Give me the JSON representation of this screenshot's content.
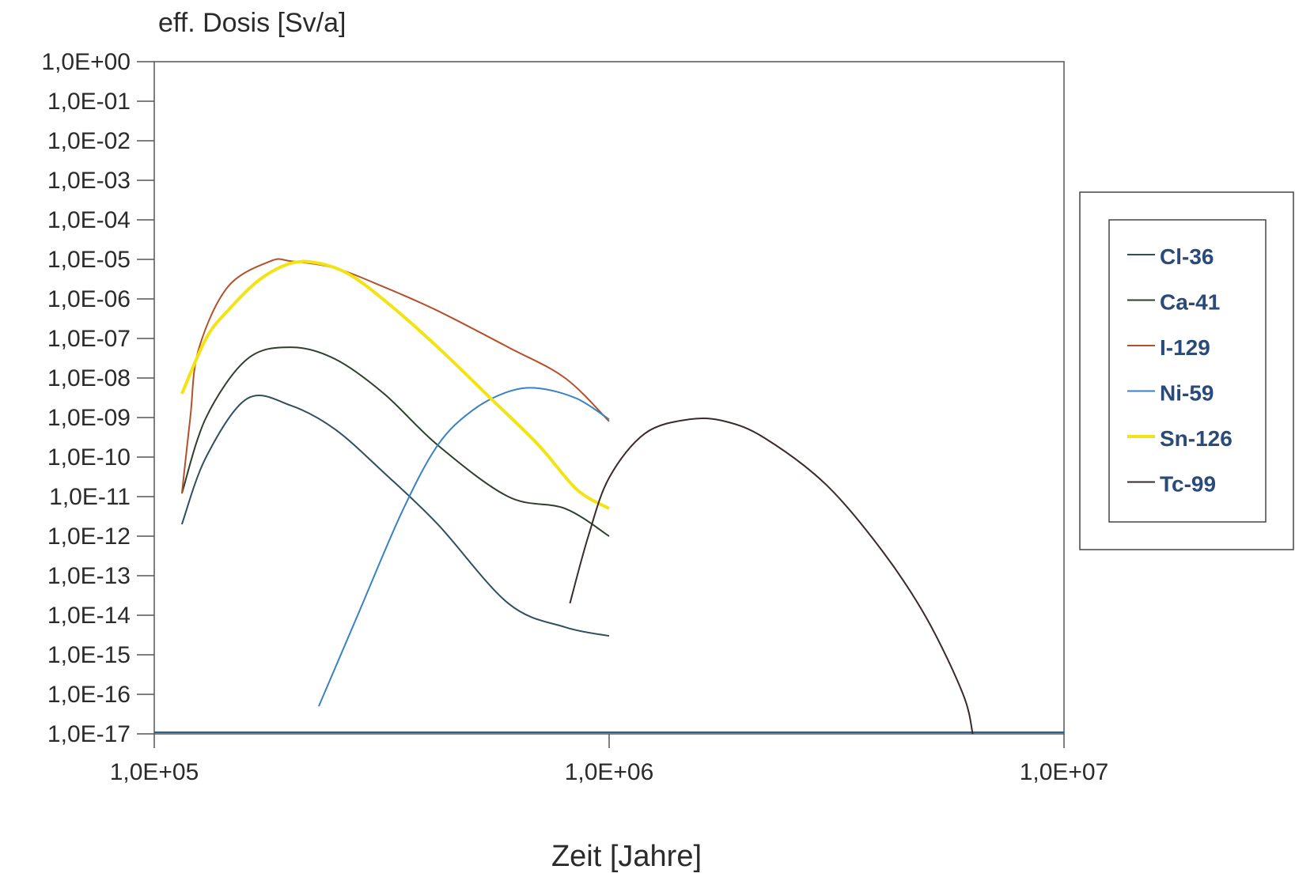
{
  "chart_data": {
    "type": "line",
    "ylabel": "eff. Dosis [Sv/a]",
    "xlabel": "Zeit [Jahre]",
    "x_scale": "log",
    "y_scale": "log",
    "xlim": [
      100000,
      10000000
    ],
    "ylim": [
      1e-17,
      1
    ],
    "x_tick_labels": [
      "1,0E+05",
      "1,0E+06",
      "1,0E+07"
    ],
    "y_tick_labels": [
      "1,0E+00",
      "1,0E-01",
      "1,0E-02",
      "1,0E-03",
      "1,0E-04",
      "1,0E-05",
      "1,0E-06",
      "1,0E-07",
      "1,0E-08",
      "1,0E-09",
      "1,0E-10",
      "1,0E-11",
      "1,0E-12",
      "1,0E-13",
      "1,0E-14",
      "1,0E-15",
      "1,0E-16",
      "1,0E-17"
    ],
    "grid": false,
    "legend_position": "right",
    "series": [
      {
        "name": "Cl-36",
        "color": "#2f4f5f",
        "points": [
          [
            115000,
            2e-12
          ],
          [
            130000,
            1e-10
          ],
          [
            160000,
            3e-09
          ],
          [
            200000,
            2e-09
          ],
          [
            250000,
            5e-10
          ],
          [
            320000,
            4e-11
          ],
          [
            420000,
            2e-12
          ],
          [
            600000,
            2e-14
          ],
          [
            800000,
            5e-15
          ],
          [
            1000000,
            3e-15
          ]
        ]
      },
      {
        "name": "Ca-41",
        "color": "#2d3f2d",
        "points": [
          [
            115000,
            1.2e-11
          ],
          [
            130000,
            1e-09
          ],
          [
            160000,
            3e-08
          ],
          [
            200000,
            6e-08
          ],
          [
            250000,
            3e-08
          ],
          [
            320000,
            4e-09
          ],
          [
            420000,
            2e-10
          ],
          [
            600000,
            1e-11
          ],
          [
            800000,
            5e-12
          ],
          [
            1000000,
            1e-12
          ]
        ]
      },
      {
        "name": "I-129",
        "color": "#b5502a",
        "points": [
          [
            115000,
            1.2e-11
          ],
          [
            120000,
            1e-09
          ],
          [
            125000,
            5e-08
          ],
          [
            145000,
            2e-06
          ],
          [
            180000,
            9e-06
          ],
          [
            200000,
            9e-06
          ],
          [
            250000,
            6e-06
          ],
          [
            320000,
            2e-06
          ],
          [
            420000,
            5e-07
          ],
          [
            600000,
            6e-08
          ],
          [
            800000,
            1e-08
          ],
          [
            1000000,
            8e-10
          ]
        ]
      },
      {
        "name": "Ni-59",
        "color": "#3a82c4",
        "points": [
          [
            230000,
            5e-17
          ],
          [
            280000,
            1e-14
          ],
          [
            350000,
            4e-12
          ],
          [
            420000,
            2e-10
          ],
          [
            500000,
            1.5e-09
          ],
          [
            600000,
            4.5e-09
          ],
          [
            700000,
            5.5e-09
          ],
          [
            850000,
            3e-09
          ],
          [
            1000000,
            9e-10
          ]
        ]
      },
      {
        "name": "Sn-126",
        "color": "#f2e412",
        "points": [
          [
            115000,
            4e-09
          ],
          [
            130000,
            1e-07
          ],
          [
            145000,
            5e-07
          ],
          [
            170000,
            3e-06
          ],
          [
            200000,
            8e-06
          ],
          [
            230000,
            8e-06
          ],
          [
            270000,
            4e-06
          ],
          [
            330000,
            7e-07
          ],
          [
            420000,
            6e-08
          ],
          [
            550000,
            3e-09
          ],
          [
            700000,
            2e-10
          ],
          [
            850000,
            1.5e-11
          ],
          [
            1000000,
            5e-12
          ]
        ]
      },
      {
        "name": "Tc-99",
        "color": "#3a2a2a",
        "points": [
          [
            820000,
            2e-14
          ],
          [
            900000,
            1e-12
          ],
          [
            1000000,
            3e-11
          ],
          [
            1200000,
            4e-10
          ],
          [
            1500000,
            9e-10
          ],
          [
            1800000,
            8e-10
          ],
          [
            2200000,
            3e-10
          ],
          [
            3000000,
            2e-11
          ],
          [
            4000000,
            4e-13
          ],
          [
            5000000,
            8e-15
          ],
          [
            6000000,
            1e-16
          ],
          [
            6300000,
            1e-17
          ]
        ]
      }
    ]
  }
}
